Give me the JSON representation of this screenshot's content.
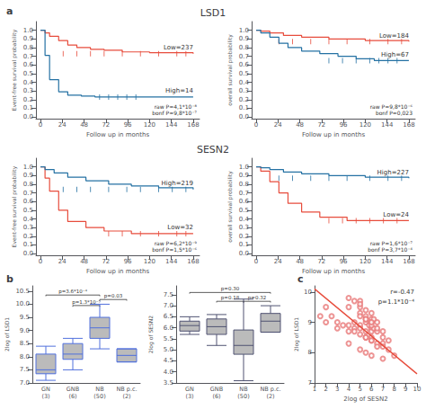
{
  "chart_data": [
    {
      "type": "step",
      "title": "LSD1",
      "panel_label": "a",
      "xlabel": "Follow up in months",
      "ylabel": "Event-free survival probability",
      "xlim": [
        -5,
        175
      ],
      "ylim": [
        -0.02,
        1.1
      ],
      "xticks": [
        0,
        24,
        48,
        72,
        96,
        120,
        144,
        168
      ],
      "yticks": [
        {
          "value": 0,
          "label": "0.0"
        },
        0.1,
        0.2,
        0.3,
        0.4,
        0.5,
        0.6,
        0.7,
        0.8,
        0.9,
        {
          "value": 1,
          "label": "1.0"
        }
      ],
      "grid": false,
      "annotations": [
        "raw P=4,1*10⁻⁸\nbonf P=9,8*10⁻⁷"
      ],
      "series": [
        {
          "name": "Low=237",
          "type": "step",
          "color": "#e74c3c",
          "x": [
            0,
            5,
            10,
            20,
            30,
            40,
            55,
            70,
            90,
            120,
            168
          ],
          "values": [
            1.0,
            0.97,
            0.93,
            0.88,
            0.83,
            0.8,
            0.78,
            0.77,
            0.75,
            0.74,
            0.73
          ]
        },
        {
          "name": "High=14",
          "type": "step",
          "color": "#2471a3",
          "x": [
            0,
            5,
            10,
            20,
            30,
            45,
            60,
            168
          ],
          "values": [
            1.0,
            0.71,
            0.43,
            0.29,
            0.25,
            0.24,
            0.23,
            0.23
          ]
        },
        {
          "type": "scatter",
          "marker": "vline",
          "color": "#e74c3c",
          "x": [
            25,
            40,
            55,
            70,
            90,
            110,
            130,
            150,
            160
          ],
          "values": [
            0.73,
            0.73,
            0.73,
            0.73,
            0.73,
            0.73,
            0.73,
            0.73,
            0.73
          ]
        },
        {
          "type": "scatter",
          "marker": "vline",
          "color": "#2471a3",
          "x": [
            65,
            75,
            85,
            95,
            105
          ],
          "values": [
            0.23,
            0.23,
            0.23,
            0.23,
            0.23
          ]
        }
      ]
    },
    {
      "type": "step",
      "xlabel": "Follow up in months",
      "ylabel": "overall survival probability",
      "xlim": [
        -5,
        175
      ],
      "ylim": [
        -0.02,
        1.1
      ],
      "xticks": [
        0,
        24,
        48,
        72,
        96,
        120,
        144,
        168
      ],
      "yticks": [
        {
          "value": 0,
          "label": "0.0"
        },
        0.1,
        0.2,
        0.3,
        0.4,
        0.5,
        0.6,
        0.7,
        0.8,
        0.9,
        {
          "value": 1,
          "label": "1.0"
        }
      ],
      "grid": false,
      "annotations": [
        "raw P=9,8*10⁻⁶\nbonf P=0,023"
      ],
      "series": [
        {
          "name": "Low=184",
          "type": "step",
          "color": "#e74c3c",
          "x": [
            0,
            5,
            15,
            30,
            50,
            80,
            120,
            168
          ],
          "values": [
            1.0,
            0.99,
            0.97,
            0.94,
            0.92,
            0.9,
            0.88,
            0.87
          ]
        },
        {
          "name": "High=67",
          "type": "step",
          "color": "#2471a3",
          "x": [
            0,
            5,
            15,
            25,
            35,
            50,
            70,
            90,
            110,
            130,
            150,
            168
          ],
          "values": [
            1.0,
            0.97,
            0.92,
            0.85,
            0.8,
            0.76,
            0.73,
            0.7,
            0.67,
            0.65,
            0.65,
            0.65
          ]
        },
        {
          "type": "scatter",
          "marker": "vline",
          "color": "#e74c3c",
          "x": [
            25,
            40,
            60,
            80,
            100,
            125,
            145,
            160
          ],
          "values": [
            0.87,
            0.87,
            0.87,
            0.87,
            0.87,
            0.87,
            0.87,
            0.87
          ]
        },
        {
          "type": "scatter",
          "marker": "vline",
          "color": "#2471a3",
          "x": [
            80,
            95,
            110,
            125,
            135,
            145,
            155
          ],
          "values": [
            0.65,
            0.65,
            0.65,
            0.65,
            0.65,
            0.65,
            0.65
          ]
        }
      ]
    },
    {
      "type": "step",
      "title": "SESN2",
      "xlabel": "Follow up in months",
      "ylabel": "Event-free survival probability",
      "xlim": [
        -5,
        175
      ],
      "ylim": [
        -0.02,
        1.1
      ],
      "xticks": [
        0,
        24,
        48,
        72,
        96,
        120,
        144,
        168
      ],
      "yticks": [
        {
          "value": 0,
          "label": "0.0"
        },
        0.1,
        0.2,
        0.3,
        0.4,
        0.5,
        0.6,
        0.7,
        0.8,
        0.9,
        {
          "value": 1,
          "label": "1.0"
        }
      ],
      "grid": false,
      "annotations": [
        "raw P=6,2*10⁻⁹\nbonf P=1,5*10⁻⁶"
      ],
      "series": [
        {
          "name": "Low=32",
          "type": "step",
          "color": "#e74c3c",
          "x": [
            0,
            5,
            10,
            20,
            30,
            50,
            70,
            100,
            168
          ],
          "values": [
            1.0,
            0.87,
            0.72,
            0.5,
            0.37,
            0.3,
            0.26,
            0.23,
            0.23
          ]
        },
        {
          "name": "High=219",
          "type": "step",
          "color": "#2471a3",
          "x": [
            0,
            5,
            15,
            30,
            50,
            75,
            100,
            130,
            168
          ],
          "values": [
            1.0,
            0.97,
            0.93,
            0.88,
            0.84,
            0.8,
            0.78,
            0.76,
            0.74
          ]
        },
        {
          "type": "scatter",
          "marker": "vline",
          "color": "#e74c3c",
          "x": [
            75,
            90,
            110,
            130,
            150,
            160
          ],
          "values": [
            0.23,
            0.23,
            0.23,
            0.23,
            0.23,
            0.23
          ]
        },
        {
          "type": "scatter",
          "marker": "vline",
          "color": "#2471a3",
          "x": [
            25,
            40,
            55,
            75,
            95,
            110,
            130,
            145,
            160
          ],
          "values": [
            0.74,
            0.74,
            0.74,
            0.74,
            0.74,
            0.74,
            0.74,
            0.74,
            0.74
          ]
        }
      ]
    },
    {
      "type": "step",
      "xlabel": "Follow up in months",
      "ylabel": "overall survival probability",
      "xlim": [
        -5,
        175
      ],
      "ylim": [
        -0.02,
        1.1
      ],
      "xticks": [
        0,
        24,
        48,
        72,
        96,
        120,
        144,
        168
      ],
      "yticks": [
        {
          "value": 0,
          "label": "0.0"
        },
        0.1,
        0.2,
        0.3,
        0.4,
        0.5,
        0.6,
        0.7,
        0.8,
        0.9,
        {
          "value": 1,
          "label": "1.0"
        }
      ],
      "grid": false,
      "annotations": [
        "raw P=1,6*10⁻⁷\nbonf P=3,7*10⁻⁴"
      ],
      "series": [
        {
          "name": "Low=24",
          "type": "step",
          "color": "#e74c3c",
          "x": [
            0,
            5,
            15,
            25,
            35,
            50,
            70,
            100,
            168
          ],
          "values": [
            1.0,
            0.95,
            0.83,
            0.7,
            0.58,
            0.48,
            0.42,
            0.38,
            0.38
          ]
        },
        {
          "name": "High=227",
          "type": "step",
          "color": "#2471a3",
          "x": [
            0,
            5,
            15,
            30,
            50,
            80,
            120,
            168
          ],
          "values": [
            1.0,
            0.99,
            0.97,
            0.94,
            0.92,
            0.9,
            0.88,
            0.87
          ]
        },
        {
          "type": "scatter",
          "marker": "vline",
          "color": "#e74c3c",
          "x": [
            80,
            95,
            110,
            125,
            140,
            155
          ],
          "values": [
            0.38,
            0.38,
            0.38,
            0.38,
            0.38,
            0.38
          ]
        },
        {
          "type": "scatter",
          "marker": "vline",
          "color": "#2471a3",
          "x": [
            25,
            40,
            60,
            80,
            100,
            125,
            145,
            160
          ],
          "values": [
            0.87,
            0.87,
            0.87,
            0.87,
            0.87,
            0.87,
            0.87,
            0.87
          ]
        }
      ]
    },
    {
      "type": "boxplot",
      "panel_label": "b",
      "ylabel": "2log of LSD1",
      "ylim": [
        7.0,
        10.7
      ],
      "yticks": [
        {
          "value": 7,
          "label": "7.0"
        },
        7.5,
        {
          "value": 8,
          "label": "8.0"
        },
        8.5,
        {
          "value": 9,
          "label": "9.0"
        },
        9.5,
        {
          "value": 10,
          "label": "10.0"
        },
        10.5
      ],
      "grid": false,
      "color": "#bbbbbb",
      "categories": [
        "GN\n(3)",
        "GNB\n(6)",
        "NB\n(50)",
        "NB p.c.\n(2)"
      ],
      "boxes": [
        {
          "q1": 7.35,
          "median": 7.5,
          "q3": 8.1,
          "whisker_low": 7.1,
          "whisker_high": 8.4
        },
        {
          "q1": 7.9,
          "median": 8.1,
          "q3": 8.5,
          "whisker_low": 7.5,
          "whisker_high": 8.7
        },
        {
          "q1": 8.7,
          "median": 9.1,
          "q3": 9.5,
          "whisker_low": 8.3,
          "whisker_high": 10.0
        },
        {
          "q1": 7.8,
          "median": 8.05,
          "q3": 8.3,
          "whisker_low": 7.8,
          "whisker_high": 8.3
        }
      ],
      "brackets": [
        {
          "from": "GN\n(3)",
          "to": "NB\n(50)",
          "y": 10.35,
          "label": "p=3.6*10⁻⁴"
        },
        {
          "from": "GNB\n(6)",
          "to": "NB\n(50)",
          "y": 9.95,
          "label": "p=1.3*10⁻⁵"
        },
        {
          "from": "NB\n(50)",
          "to": "NB p.c.\n(2)",
          "y": 10.18,
          "label": "p=0.03"
        }
      ]
    },
    {
      "type": "boxplot",
      "ylabel": "2log of SESN2",
      "ylim": [
        3.5,
        7.9
      ],
      "yticks": [
        3.5,
        {
          "value": 4,
          "label": "4.0"
        },
        4.5,
        {
          "value": 5,
          "label": "5.0"
        },
        5.5,
        {
          "value": 6,
          "label": "6.0"
        },
        6.5,
        {
          "value": 7,
          "label": "7.0"
        },
        7.5
      ],
      "grid": false,
      "color": "#bbbbbb",
      "categories": [
        "GN\n(3)",
        "GNB\n(6)",
        "NB\n(50)",
        "NB p.c.\n(2)"
      ],
      "boxes": [
        {
          "q1": 5.85,
          "median": 6.1,
          "q3": 6.3,
          "whisker_low": 5.7,
          "whisker_high": 6.5
        },
        {
          "q1": 5.7,
          "median": 6.05,
          "q3": 6.4,
          "whisker_low": 5.2,
          "whisker_high": 6.6
        },
        {
          "q1": 4.8,
          "median": 5.2,
          "q3": 5.9,
          "whisker_low": 3.6,
          "whisker_high": 7.3
        },
        {
          "q1": 5.8,
          "median": 6.3,
          "q3": 6.65,
          "whisker_low": 5.8,
          "whisker_high": 7.0
        }
      ],
      "brackets": [
        {
          "from": "GN\n(3)",
          "to": "NB p.c.\n(2)",
          "y": 7.6,
          "label": "p=0.30"
        },
        {
          "from": "GNB\n(6)",
          "to": "NB\n(50)",
          "y": 7.2,
          "label": "p=0.18"
        },
        {
          "from": "NB\n(50)",
          "to": "NB p.c.\n(2)",
          "y": 7.2,
          "label": "p=0.32"
        }
      ]
    },
    {
      "type": "scatter",
      "panel_label": "c",
      "xlabel": "2log of SESN2",
      "ylabel": "2log of LSD1",
      "xlim": [
        1,
        10
      ],
      "ylim": [
        7,
        10.2
      ],
      "xticks": [
        1,
        2,
        3,
        4,
        5,
        6,
        7,
        8,
        9,
        10
      ],
      "yticks": [
        7,
        8,
        9,
        10
      ],
      "grid": false,
      "annotations": [
        "r=-0.47",
        "p=1.1*10⁻⁴"
      ],
      "series": [
        {
          "type": "scatter",
          "marker": "open_circle",
          "color": "#e87979",
          "x": [
            4,
            5,
            5,
            5,
            5.5,
            5.5,
            5.5,
            5.8,
            6,
            6,
            6,
            6,
            6,
            6,
            6.2,
            6.2,
            6.5,
            6.5,
            5,
            4.5,
            4,
            4.5,
            5,
            5.5,
            6,
            7,
            7,
            7,
            6.5,
            6,
            5.5,
            5,
            4.5,
            4,
            3.5,
            3,
            2.5,
            2,
            5,
            5.5,
            6,
            6.5,
            7,
            7.5,
            8,
            5,
            5.5,
            4,
            4.5,
            5.5,
            6,
            3,
            2,
            1.5,
            4,
            5,
            6,
            7,
            5.5,
            6.5,
            7.5
          ],
          "values": [
            9.8,
            9.5,
            9.7,
            9.3,
            9.2,
            9.0,
            9.4,
            8.9,
            9.1,
            8.8,
            8.7,
            9.0,
            9.3,
            8.5,
            9.1,
            8.8,
            9.0,
            8.7,
            9.2,
            9.0,
            9.5,
            9.7,
            9.6,
            9.1,
            8.9,
            8.7,
            8.5,
            8.3,
            8.8,
            9.0,
            9.1,
            8.9,
            8.8,
            8.7,
            8.9,
            9.0,
            9.2,
            9.5,
            8.6,
            8.5,
            8.4,
            8.3,
            8.2,
            8.1,
            7.9,
            8.8,
            8.7,
            8.9,
            8.7,
            8.5,
            8.4,
            8.8,
            9.0,
            9.2,
            8.3,
            8.1,
            7.9,
            7.8,
            8.0,
            8.2,
            8.4
          ]
        },
        {
          "type": "line",
          "color": "#e74c3c",
          "x": [
            1,
            10
          ],
          "values": [
            10.1,
            7.3
          ]
        }
      ]
    }
  ]
}
